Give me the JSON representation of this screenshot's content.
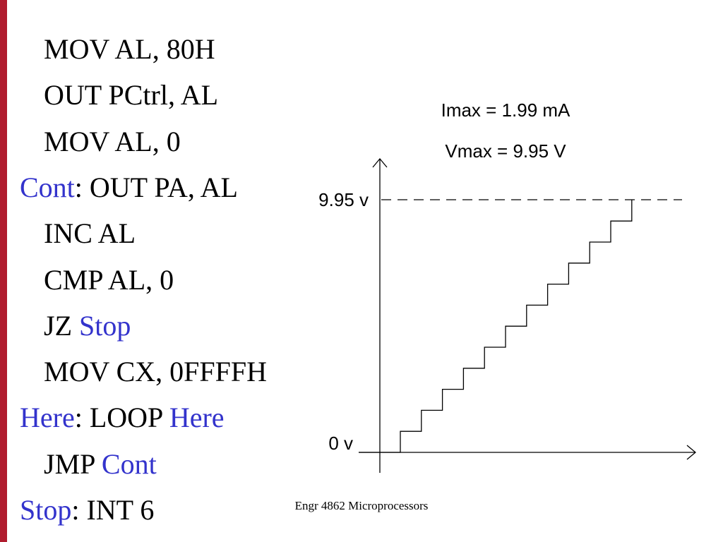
{
  "code": [
    {
      "segments": [
        {
          "text": "MOV AL, 80H"
        }
      ]
    },
    {
      "segments": [
        {
          "text": "OUT PCtrl, AL"
        }
      ]
    },
    {
      "segments": [
        {
          "text": "MOV AL, 0"
        }
      ]
    },
    {
      "segments": [
        {
          "text": "Cont",
          "color": "#3333cc"
        },
        {
          "text": ": OUT PA, AL"
        }
      ]
    },
    {
      "segments": [
        {
          "text": "INC AL"
        }
      ]
    },
    {
      "segments": [
        {
          "text": "CMP AL, 0"
        }
      ]
    },
    {
      "segments": [
        {
          "text": "JZ "
        },
        {
          "text": "Stop",
          "color": "#3333cc"
        }
      ]
    },
    {
      "segments": [
        {
          "text": "MOV CX, 0FFFFH"
        }
      ]
    },
    {
      "segments": [
        {
          "text": "Here",
          "color": "#3333cc"
        },
        {
          "text": ": LOOP "
        },
        {
          "text": "Here",
          "color": "#3333cc"
        }
      ]
    },
    {
      "segments": [
        {
          "text": "JMP "
        },
        {
          "text": "Cont",
          "color": "#3333cc"
        }
      ]
    },
    {
      "segments": [
        {
          "text": "Stop",
          "color": "#3333cc"
        },
        {
          "text": ": INT 6"
        }
      ]
    }
  ],
  "diagram": {
    "imax": "Imax = 1.99 mA",
    "vmax": "Vmax = 9.95 V",
    "top_label": "9.95 v",
    "bottom_label": "0 v"
  },
  "footer": "Engr 4862 Microprocessors"
}
